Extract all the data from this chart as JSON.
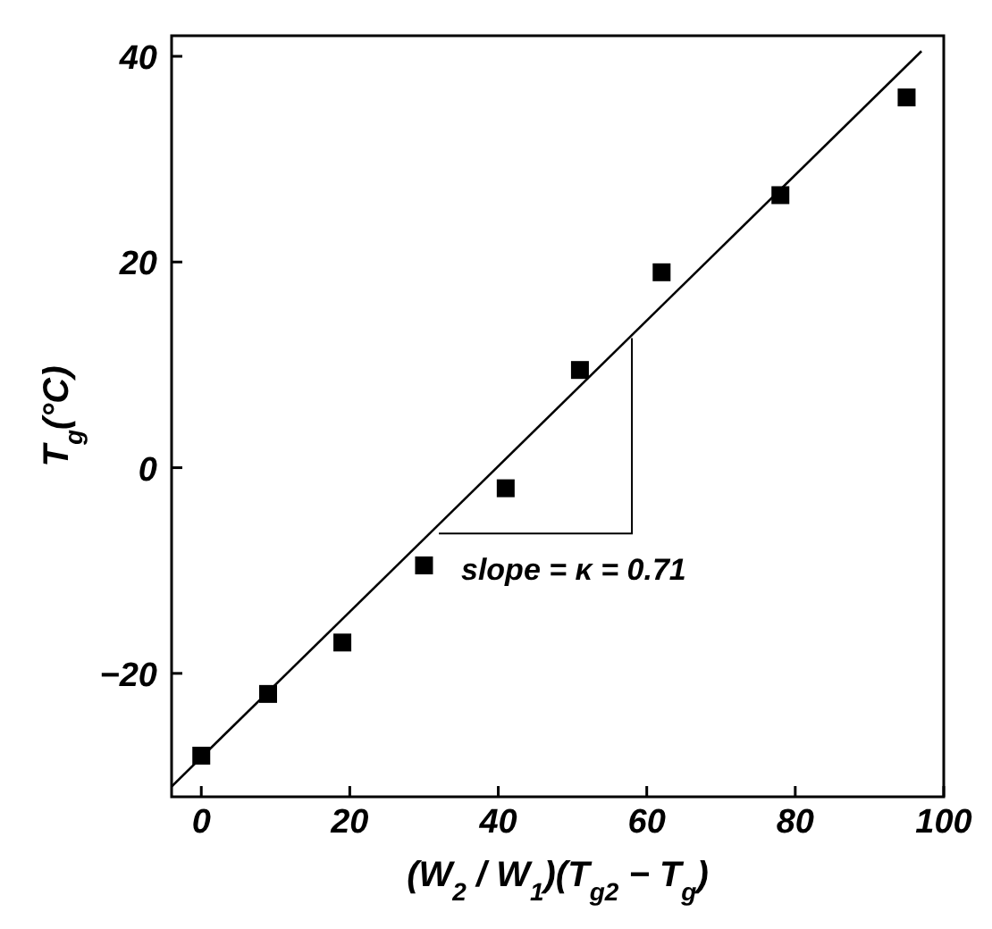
{
  "chart_data": {
    "type": "scatter",
    "xlabel": "(W$_{2}$ / W$_{1}$)(T$_{g2}$ − T$_{g}$)",
    "ylabel": "T$_{g}$(°C)",
    "xlim": [
      -4,
      100
    ],
    "ylim": [
      -32,
      42
    ],
    "xticks": [
      0,
      20,
      40,
      60,
      80,
      100
    ],
    "yticks": [
      -20,
      0,
      20,
      40
    ],
    "marker": "square",
    "annotations": [
      {
        "text": "slope = κ = 0.71",
        "x": 58,
        "y": 12.6
      }
    ],
    "series": [
      {
        "color": "#000000",
        "x": [
          0,
          9,
          19,
          30,
          41,
          51,
          62,
          78,
          95
        ],
        "values": [
          -28,
          -22,
          -17,
          -9.5,
          -2,
          9.5,
          19,
          26.5,
          36
        ]
      },
      {
        "type": "line",
        "marker": "none",
        "color": "#000000",
        "x": [
          -4,
          97
        ],
        "values": [
          -31,
          40.5
        ]
      }
    ]
  }
}
